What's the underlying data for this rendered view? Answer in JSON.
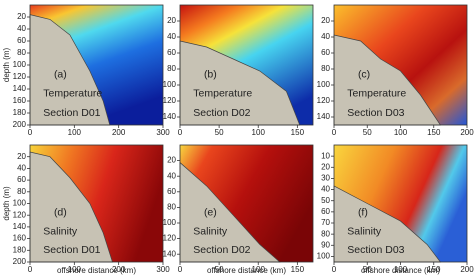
{
  "chart_data": [
    {
      "type": "contour",
      "label": "(a)",
      "variable": "Temperature",
      "section": "Section D01",
      "ylabel": "depth (m)",
      "xlim": [
        0,
        300
      ],
      "xticks": [
        0,
        100,
        200,
        300
      ],
      "ylim": [
        0,
        200
      ],
      "yticks": [
        20,
        40,
        60,
        80,
        100,
        120,
        140,
        160,
        180,
        200
      ]
    },
    {
      "type": "contour",
      "label": "(b)",
      "variable": "Temperature",
      "section": "Section D02",
      "xlim": [
        0,
        170
      ],
      "xticks": [
        0,
        50,
        100,
        150
      ],
      "ylim": [
        0,
        150
      ],
      "yticks": [
        20,
        40,
        60,
        80,
        100,
        120,
        140
      ]
    },
    {
      "type": "contour",
      "label": "(c)",
      "variable": "Temperature",
      "section": "Section D03",
      "xlim": [
        0,
        200
      ],
      "xticks": [
        0,
        50,
        100,
        150,
        200
      ],
      "ylim": [
        0,
        150
      ],
      "yticks": [
        20,
        40,
        60,
        80,
        100,
        120,
        140
      ]
    },
    {
      "type": "contour",
      "label": "(d)",
      "variable": "Salinity",
      "section": "Section D01",
      "ylabel": "depth (m)",
      "xlabel": "offshore distance (km)",
      "xlim": [
        0,
        300
      ],
      "xticks": [
        0,
        100,
        200,
        300
      ],
      "ylim": [
        0,
        200
      ],
      "yticks": [
        20,
        40,
        60,
        80,
        100,
        120,
        140,
        160,
        180,
        200
      ]
    },
    {
      "type": "contour",
      "label": "(e)",
      "variable": "Salinity",
      "section": "Section D02",
      "xlabel": "offshore distance (km)",
      "xlim": [
        0,
        170
      ],
      "xticks": [
        0,
        50,
        100,
        150
      ],
      "ylim": [
        0,
        150
      ],
      "yticks": [
        20,
        40,
        60,
        80,
        100,
        120,
        140
      ]
    },
    {
      "type": "contour",
      "label": "(f)",
      "variable": "Salinity",
      "section": "Section D03",
      "xlabel": "offshore distance (km)",
      "xlim": [
        0,
        200
      ],
      "xticks": [
        0,
        50,
        100,
        150,
        200
      ],
      "ylim": [
        0,
        105
      ],
      "yticks": [
        10,
        20,
        30,
        40,
        50,
        60,
        70,
        80,
        90,
        100
      ]
    }
  ]
}
